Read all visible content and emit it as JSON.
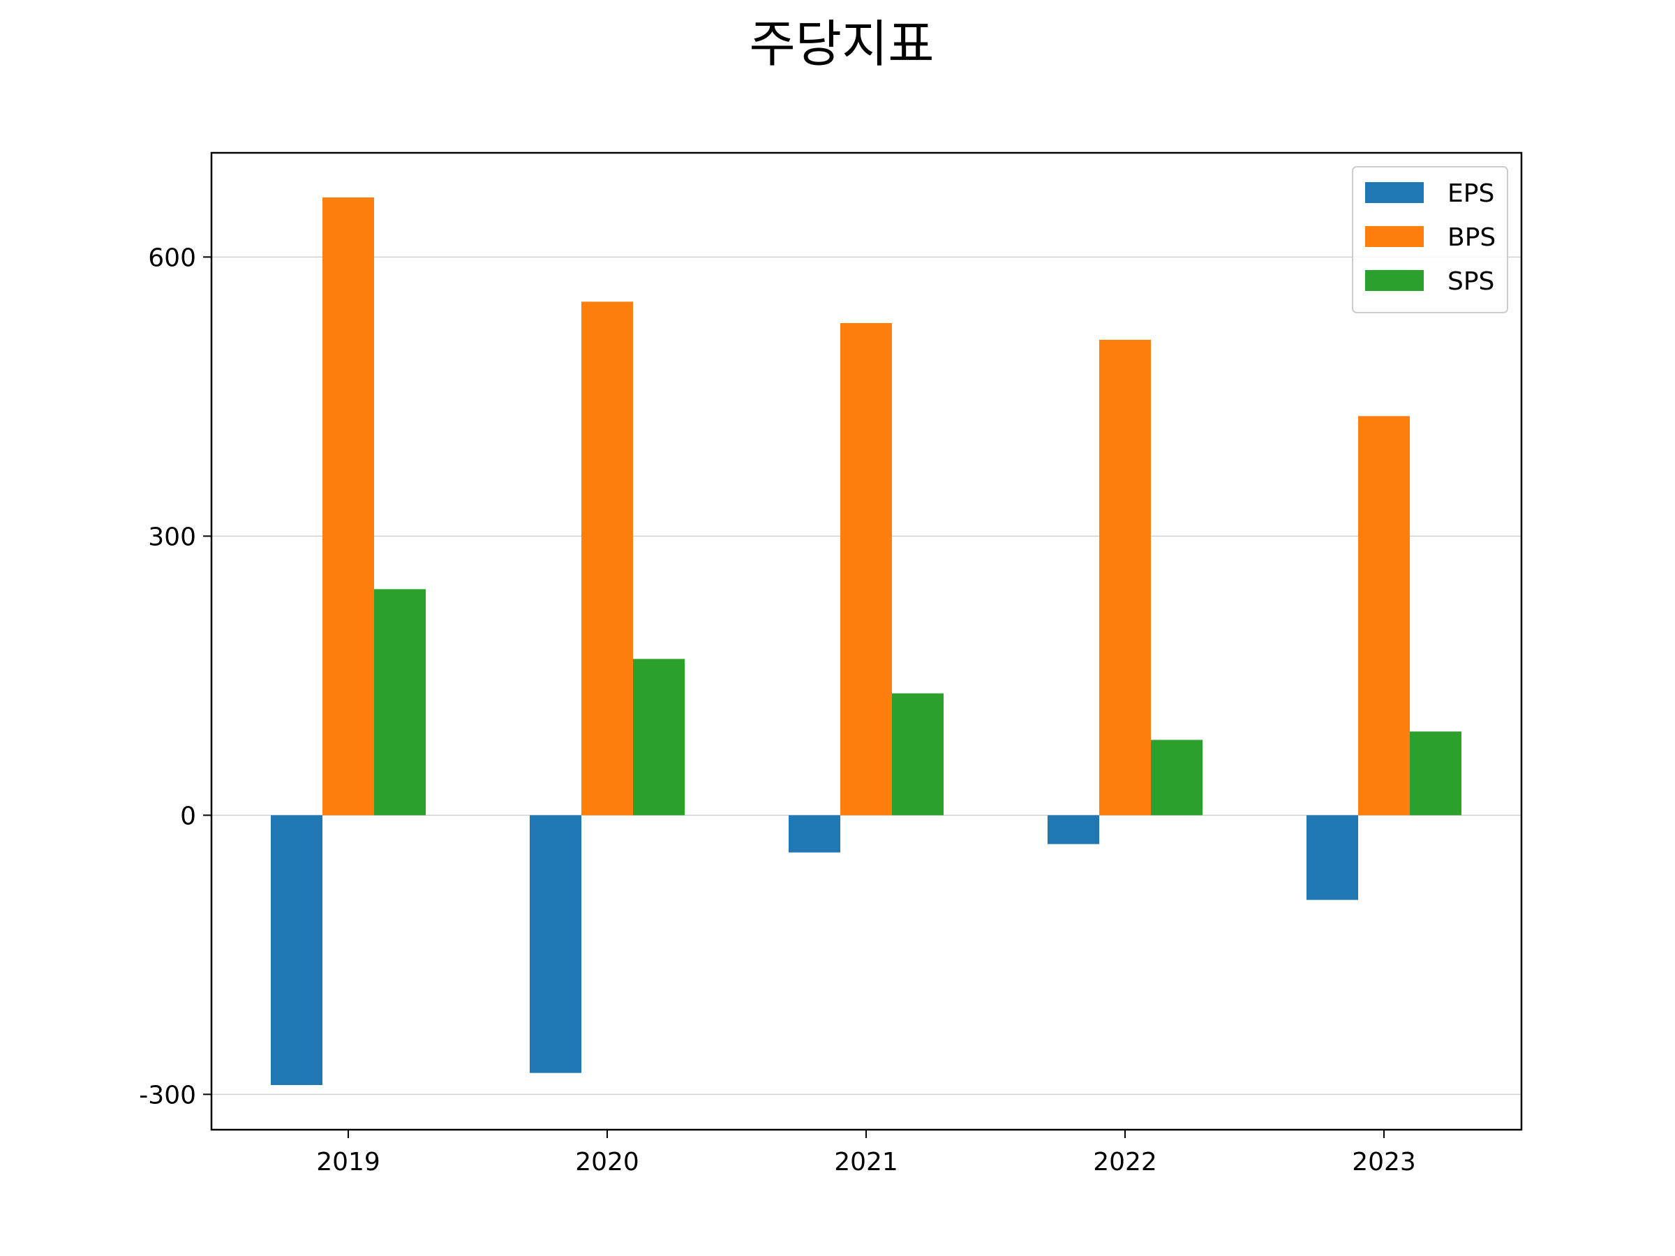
{
  "chart_data": {
    "type": "bar",
    "title": "주당지표",
    "xlabel": "",
    "ylabel": "",
    "categories": [
      "2019",
      "2020",
      "2021",
      "2022",
      "2023"
    ],
    "series": [
      {
        "name": "EPS",
        "color": "#1f77b4",
        "values": [
          -290,
          -277,
          -40,
          -31,
          -91
        ]
      },
      {
        "name": "BPS",
        "color": "#ff7f0e",
        "values": [
          664,
          552,
          529,
          511,
          429
        ]
      },
      {
        "name": "SPS",
        "color": "#2ca02c",
        "values": [
          243,
          168,
          131,
          81,
          90
        ]
      }
    ],
    "ylim": [
      -338,
      712
    ],
    "yticks": [
      -300,
      0,
      300,
      600
    ],
    "ytick_labels": [
      "-300",
      "0",
      "300",
      "600"
    ],
    "grid": "horizontal",
    "legend_position": "top-right"
  }
}
